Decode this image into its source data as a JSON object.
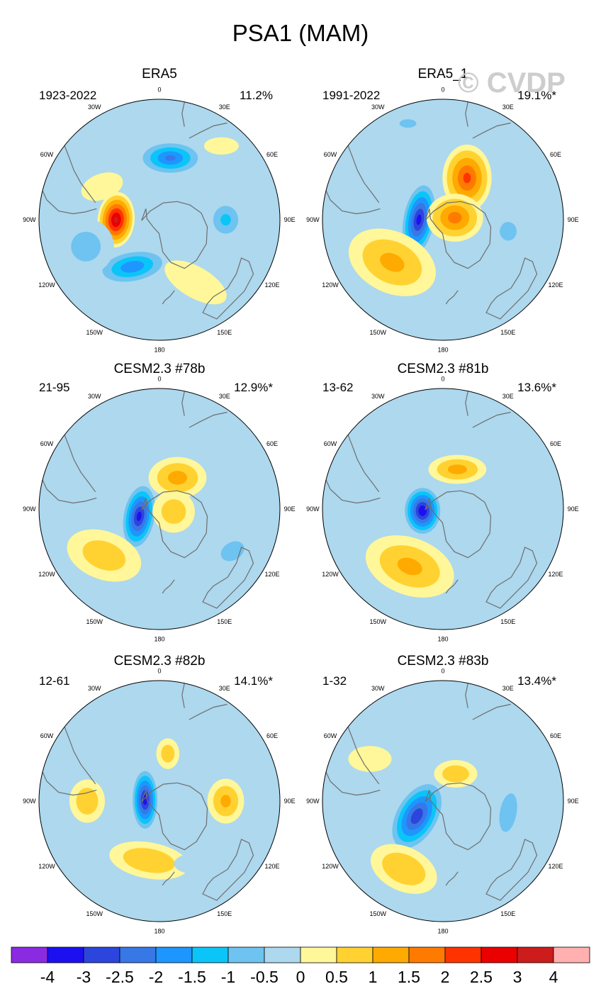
{
  "figure": {
    "title": "PSA1 (MAM)",
    "watermark": "© CVDP",
    "colors": {
      "ocean_zero": "#add8ee",
      "pos_0_5": "#fff799",
      "coast": "#6e6e6e"
    }
  },
  "panels": [
    {
      "title": "ERA5",
      "period": "1923-2022",
      "variance": "11.2%",
      "blobs": [
        {
          "lon": 270,
          "colat": 0.36,
          "rx": 0.16,
          "ry": 0.24,
          "rot": 5,
          "value": 3.2
        },
        {
          "lon": 10,
          "colat": 0.52,
          "rx": 0.3,
          "ry": 0.16,
          "rot": 0,
          "value": -2.2
        },
        {
          "lon": 210,
          "colat": 0.45,
          "rx": 0.34,
          "ry": 0.16,
          "rot": -10,
          "value": -2.0
        },
        {
          "lon": 250,
          "colat": 0.65,
          "rx": 0.3,
          "ry": 0.3,
          "rot": 0,
          "value": -0.8
        },
        {
          "lon": 90,
          "colat": 0.55,
          "rx": 0.18,
          "ry": 0.2,
          "rot": 0,
          "value": -1.2
        },
        {
          "lon": 150,
          "colat": 0.6,
          "rx": 0.4,
          "ry": 0.18,
          "rot": 30,
          "value": 0.6
        },
        {
          "lon": 300,
          "colat": 0.55,
          "rx": 0.25,
          "ry": 0.15,
          "rot": -20,
          "value": 0.6
        },
        {
          "lon": 40,
          "colat": 0.8,
          "rx": 0.2,
          "ry": 0.1,
          "rot": 0,
          "value": 0.6
        }
      ]
    },
    {
      "title": "ERA5_1",
      "period": "1991-2022",
      "variance": "19.1%*",
      "blobs": [
        {
          "lon": 270,
          "colat": 0.2,
          "rx": 0.15,
          "ry": 0.34,
          "rot": 10,
          "value": -3.3
        },
        {
          "lon": 30,
          "colat": 0.4,
          "rx": 0.22,
          "ry": 0.3,
          "rot": 0,
          "value": 2.2
        },
        {
          "lon": 80,
          "colat": 0.1,
          "rx": 0.26,
          "ry": 0.22,
          "rot": 0,
          "value": 1.8
        },
        {
          "lon": 230,
          "colat": 0.55,
          "rx": 0.45,
          "ry": 0.3,
          "rot": 25,
          "value": 1.2
        },
        {
          "lon": 100,
          "colat": 0.55,
          "rx": 0.2,
          "ry": 0.22,
          "rot": 0,
          "value": -0.7
        },
        {
          "lon": 340,
          "colat": 0.85,
          "rx": 0.2,
          "ry": 0.1,
          "rot": 0,
          "value": -0.7
        }
      ]
    },
    {
      "title": "CESM2.3 #78b",
      "period": "21-95",
      "variance": "12.9%*",
      "blobs": [
        {
          "lon": 250,
          "colat": 0.18,
          "rx": 0.15,
          "ry": 0.3,
          "rot": 10,
          "value": -3.3
        },
        {
          "lon": 30,
          "colat": 0.3,
          "rx": 0.28,
          "ry": 0.2,
          "rot": 0,
          "value": 1.3
        },
        {
          "lon": 100,
          "colat": 0.12,
          "rx": 0.22,
          "ry": 0.22,
          "rot": 0,
          "value": 0.9
        },
        {
          "lon": 230,
          "colat": 0.6,
          "rx": 0.4,
          "ry": 0.25,
          "rot": 20,
          "value": 0.9
        },
        {
          "lon": 120,
          "colat": 0.7,
          "rx": 0.25,
          "ry": 0.18,
          "rot": -30,
          "value": -0.8
        },
        {
          "lon": 20,
          "colat": 0.85,
          "rx": 0.35,
          "ry": 0.15,
          "rot": 0,
          "value": -0.5
        }
      ]
    },
    {
      "title": "CESM2.3 #81b",
      "period": "13-62",
      "variance": "13.6%*",
      "blobs": [
        {
          "lon": 265,
          "colat": 0.17,
          "rx": 0.17,
          "ry": 0.22,
          "rot": 0,
          "value": -3.6
        },
        {
          "lon": 210,
          "colat": 0.55,
          "rx": 0.45,
          "ry": 0.28,
          "rot": 20,
          "value": 1.2
        },
        {
          "lon": 20,
          "colat": 0.35,
          "rx": 0.28,
          "ry": 0.14,
          "rot": 0,
          "value": 1.3
        },
        {
          "lon": 100,
          "colat": 0.55,
          "rx": 0.3,
          "ry": 0.3,
          "rot": 0,
          "value": -0.6
        },
        {
          "lon": 20,
          "colat": 0.82,
          "rx": 0.4,
          "ry": 0.14,
          "rot": 0,
          "value": -0.6
        }
      ]
    },
    {
      "title": "CESM2.3 #82b",
      "period": "12-61",
      "variance": "14.1%*",
      "blobs": [
        {
          "lon": 275,
          "colat": 0.12,
          "rx": 0.12,
          "ry": 0.28,
          "rot": 0,
          "value": -3.4
        },
        {
          "lon": 90,
          "colat": 0.55,
          "rx": 0.18,
          "ry": 0.22,
          "rot": 0,
          "value": 1.2
        },
        {
          "lon": 270,
          "colat": 0.6,
          "rx": 0.18,
          "ry": 0.22,
          "rot": 0,
          "value": 1.0
        },
        {
          "lon": 190,
          "colat": 0.5,
          "rx": 0.4,
          "ry": 0.18,
          "rot": 10,
          "value": 1.1
        },
        {
          "lon": 10,
          "colat": 0.4,
          "rx": 0.12,
          "ry": 0.16,
          "rot": 0,
          "value": 0.9
        },
        {
          "lon": 40,
          "colat": 0.8,
          "rx": 0.4,
          "ry": 0.18,
          "rot": 0,
          "value": -0.6
        },
        {
          "lon": 150,
          "colat": 0.6,
          "rx": 0.25,
          "ry": 0.12,
          "rot": 0,
          "value": -0.6
        }
      ]
    },
    {
      "title": "CESM2.3 #83b",
      "period": "1-32",
      "variance": "13.4%*",
      "blobs": [
        {
          "lon": 240,
          "colat": 0.25,
          "rx": 0.2,
          "ry": 0.35,
          "rot": 30,
          "value": -3.0
        },
        {
          "lon": 25,
          "colat": 0.25,
          "rx": 0.22,
          "ry": 0.14,
          "rot": 0,
          "value": 1.0
        },
        {
          "lon": 210,
          "colat": 0.65,
          "rx": 0.35,
          "ry": 0.22,
          "rot": 25,
          "value": 1.1
        },
        {
          "lon": 100,
          "colat": 0.55,
          "rx": 0.15,
          "ry": 0.35,
          "rot": 10,
          "value": -0.9
        },
        {
          "lon": 330,
          "colat": 0.7,
          "rx": 0.3,
          "ry": 0.15,
          "rot": 0,
          "value": -0.6
        },
        {
          "lon": 300,
          "colat": 0.7,
          "rx": 0.25,
          "ry": 0.15,
          "rot": 0,
          "value": 0.6
        }
      ]
    }
  ],
  "longitude_labels": [
    {
      "lon": 0,
      "label": "0"
    },
    {
      "lon": 30,
      "label": "30E"
    },
    {
      "lon": 60,
      "label": "60E"
    },
    {
      "lon": 90,
      "label": "90E"
    },
    {
      "lon": 120,
      "label": "120E"
    },
    {
      "lon": 150,
      "label": "150E"
    },
    {
      "lon": 180,
      "label": "180"
    },
    {
      "lon": 210,
      "label": "150W"
    },
    {
      "lon": 240,
      "label": "120W"
    },
    {
      "lon": 270,
      "label": "90W"
    },
    {
      "lon": 300,
      "label": "60W"
    },
    {
      "lon": 330,
      "label": "30W"
    }
  ],
  "colorbar": {
    "colors": [
      "#8a2be2",
      "#1c10f0",
      "#2c45dc",
      "#3778e6",
      "#1e96ff",
      "#0bc5f8",
      "#6ec3f0",
      "#add8ee",
      "#fff799",
      "#ffd231",
      "#ffaa00",
      "#ff7b00",
      "#ff3300",
      "#ea0000",
      "#cd1c1c",
      "#ffb0b0"
    ],
    "labels": [
      "-4",
      "-3",
      "-2.5",
      "-2",
      "-1.5",
      "-1",
      "-0.5",
      "0",
      "0.5",
      "1",
      "1.5",
      "2",
      "2.5",
      "3",
      "4"
    ],
    "levels": [
      -4,
      -3,
      -2.5,
      -2,
      -1.5,
      -1,
      -0.5,
      0,
      0.5,
      1,
      1.5,
      2,
      2.5,
      3,
      4
    ]
  }
}
